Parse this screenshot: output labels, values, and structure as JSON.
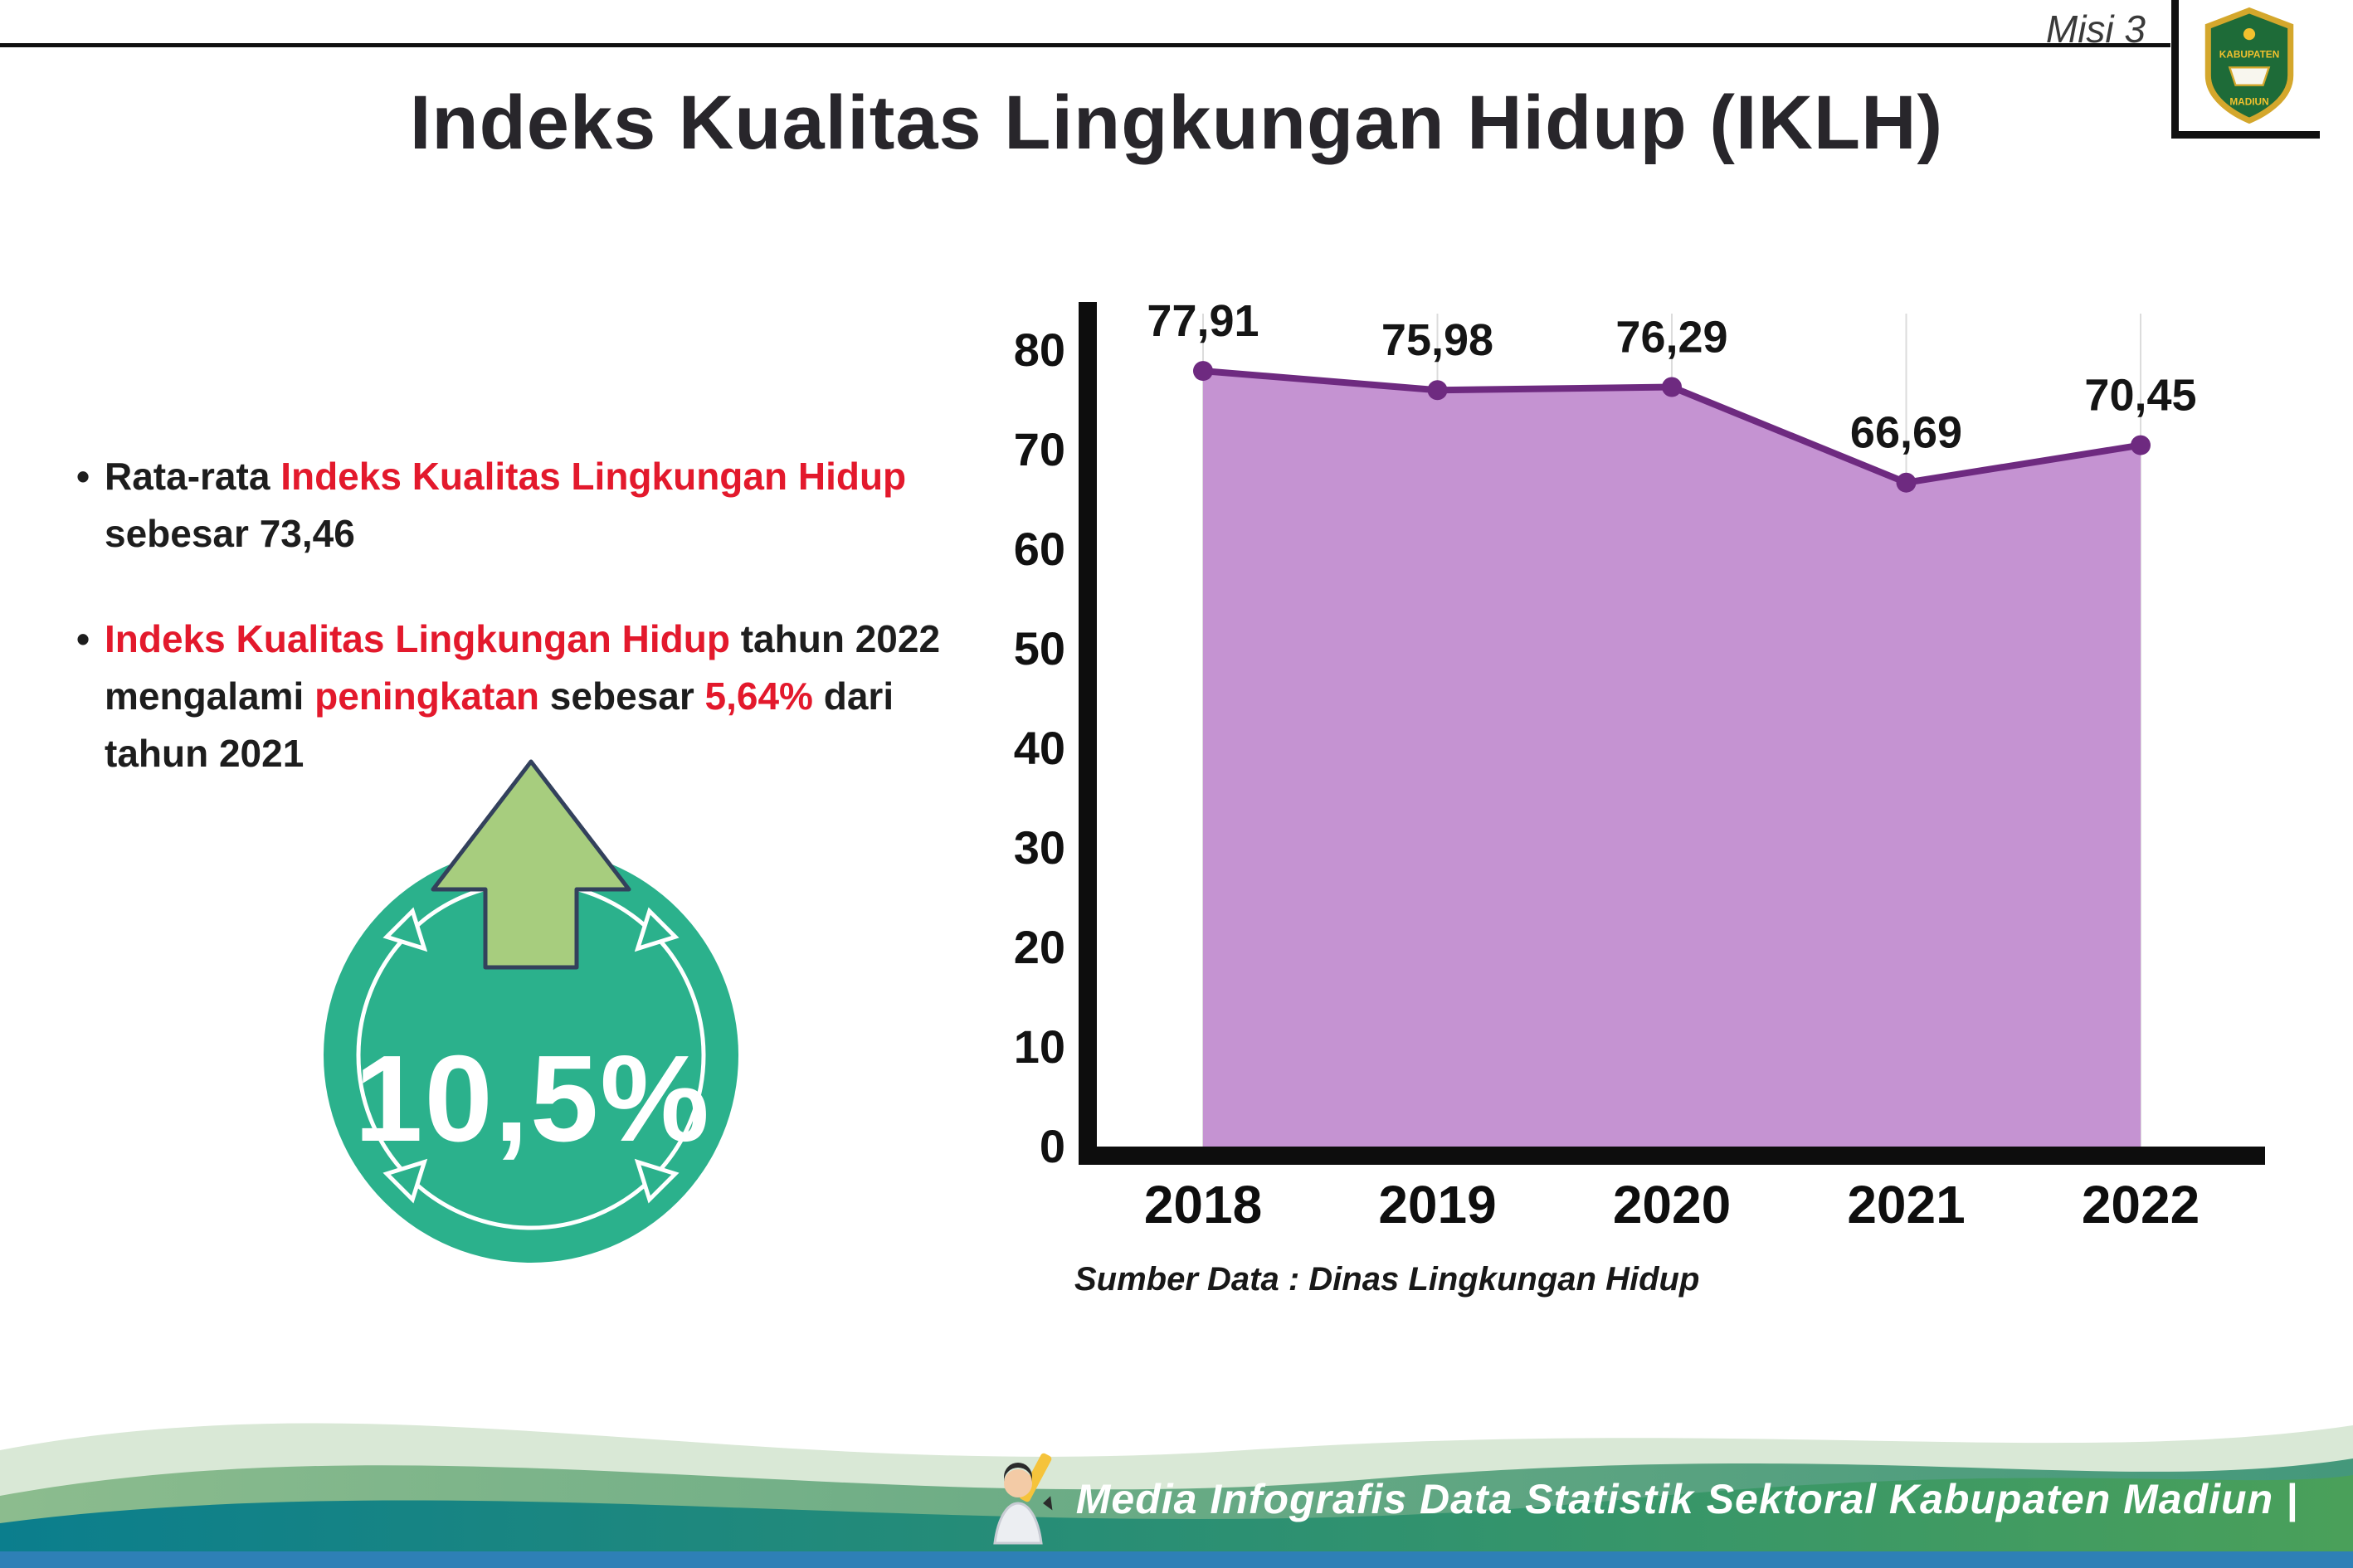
{
  "header": {
    "misi": "Misi 3",
    "title": "Indeks Kualitas Lingkungan Hidup (IKLH)",
    "logo_top": "KABUPATEN",
    "logo_bottom": "MADIUN"
  },
  "bullets": {
    "marker": "•",
    "b1": {
      "t1": "Rata-rata ",
      "t2": "Indeks Kualitas Lingkungan Hidup",
      "t3": " sebesar 73,46"
    },
    "b2": {
      "t1": "Indeks Kualitas Lingkungan Hidup",
      "t2": " tahun 2022 mengalami ",
      "t3": "peningkatan",
      "t4": " sebesar ",
      "t5": "5,64%",
      "t6": " dari tahun 2021"
    }
  },
  "badge": {
    "value": "10,5%"
  },
  "chart_data": {
    "type": "area",
    "title": "Indeks Kualitas Lingkungan Hidup (IKLH)",
    "categories": [
      "2018",
      "2019",
      "2020",
      "2021",
      "2022"
    ],
    "values": [
      77.91,
      75.98,
      76.29,
      66.69,
      70.45
    ],
    "value_labels": [
      "77,91",
      "75,98",
      "76,29",
      "66,69",
      "70,45"
    ],
    "xlabel": "",
    "ylabel": "",
    "ylim": [
      0,
      80
    ],
    "yticks": [
      0,
      10,
      20,
      30,
      40,
      50,
      60,
      70,
      80
    ],
    "grid": "vertical-light",
    "legend": "none",
    "line_color": "#6e2a80",
    "fill_color": "#c593d2",
    "point_color": "#6e2a80",
    "source": "Sumber Data : Dinas Lingkungan Hidup"
  },
  "footer": {
    "text": "Media Infografis Data Statistik Sektoral Kabupaten Madiun |"
  },
  "colors": {
    "accent_red": "#e3192c",
    "title_text": "#28262b",
    "badge_circle": "#2bb18c",
    "badge_arrow": "#a7cd7e",
    "footer_band_teal": "#0b7e8d",
    "footer_band_green": "#4aa05a",
    "footer_strip_blue": "#2e80b6"
  }
}
